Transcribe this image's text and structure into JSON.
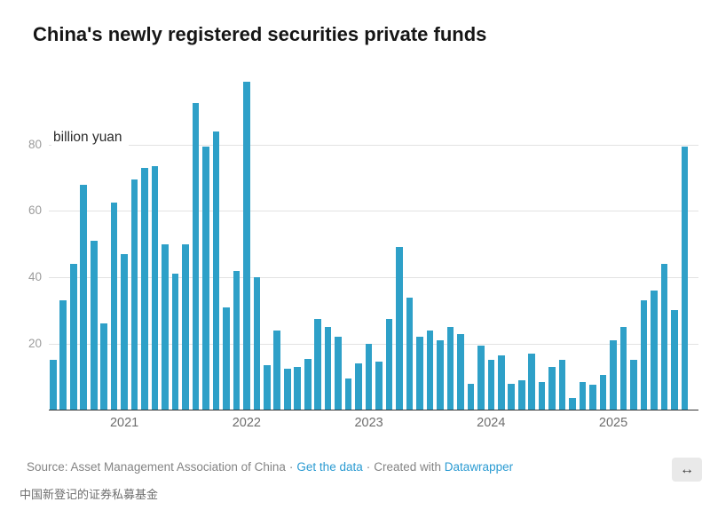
{
  "header": {
    "title": "China's newly registered securities private funds"
  },
  "chart_data": {
    "type": "bar",
    "title": "China's newly registered securities private funds",
    "unit_label": "billion yuan",
    "ylabel": "billion yuan",
    "xlabel": "",
    "ylim": [
      0,
      100
    ],
    "yticks": [
      20,
      40,
      60,
      80
    ],
    "grid": "horizontal",
    "bar_color": "#2EA0C8",
    "x": [
      "2020-06",
      "2020-07",
      "2020-08",
      "2020-09",
      "2020-10",
      "2020-11",
      "2020-12",
      "2021-01",
      "2021-02",
      "2021-03",
      "2021-04",
      "2021-05",
      "2021-06",
      "2021-07",
      "2021-08",
      "2021-09",
      "2021-10",
      "2021-11",
      "2021-12",
      "2022-01",
      "2022-02",
      "2022-03",
      "2022-04",
      "2022-05",
      "2022-06",
      "2022-07",
      "2022-08",
      "2022-09",
      "2022-10",
      "2022-11",
      "2022-12",
      "2023-01",
      "2023-02",
      "2023-03",
      "2023-04",
      "2023-05",
      "2023-06",
      "2023-07",
      "2023-08",
      "2023-09",
      "2023-10",
      "2023-11",
      "2023-12",
      "2024-01",
      "2024-02",
      "2024-03",
      "2024-04",
      "2024-05",
      "2024-06",
      "2024-07",
      "2024-08",
      "2024-09",
      "2024-10",
      "2024-11",
      "2024-12",
      "2025-01",
      "2025-02",
      "2025-03",
      "2025-04",
      "2025-05",
      "2025-06",
      "2025-07",
      "2025-08"
    ],
    "values": [
      15,
      33,
      44,
      68,
      51,
      26,
      62.5,
      47,
      69.5,
      73,
      73.5,
      50,
      41,
      50,
      92.5,
      79.5,
      84,
      31,
      42,
      99,
      40,
      13.5,
      24,
      12.5,
      13,
      15.5,
      27.5,
      25,
      22,
      9.5,
      14,
      20,
      14.5,
      27.5,
      49,
      34,
      22,
      24,
      21,
      25,
      23,
      8,
      19.5,
      15,
      16.5,
      8,
      9,
      17,
      8.5,
      13,
      15,
      3.5,
      8.5,
      7.5,
      10.5,
      21,
      25,
      15,
      33,
      36,
      44,
      30,
      79.5
    ],
    "x_tick_labels": [
      "2021",
      "2022",
      "2023",
      "2024",
      "2025"
    ],
    "legend": "none"
  },
  "footer": {
    "source_label": "Source: Asset Management Association of China",
    "separator": "·",
    "get_data_label": "Get the data",
    "created_with_label": "Created with",
    "datawrapper_label": "Datawrapper",
    "resize_icon": "↔"
  },
  "caption": "中国新登记的证券私募基金"
}
